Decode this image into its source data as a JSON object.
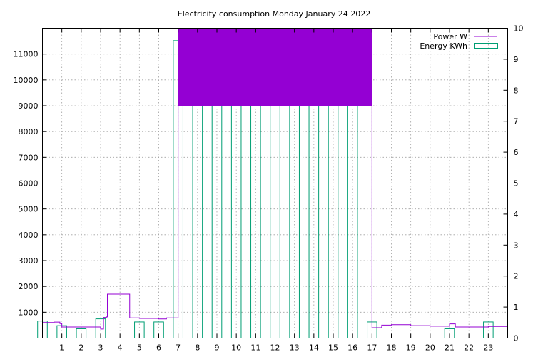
{
  "chart_data": {
    "type": "line",
    "title": "Electricity consumption Monday January 24 2022",
    "xlabel": "",
    "ylabel": "",
    "xlim": [
      0,
      24
    ],
    "ylim": [
      0,
      12000
    ],
    "y2lim": [
      0,
      10
    ],
    "grid": true,
    "legend_position": "top-right",
    "x_ticks": [
      "1",
      "2",
      "3",
      "4",
      "5",
      "6",
      "7",
      "8",
      "9",
      "10",
      "11",
      "12",
      "13",
      "14",
      "15",
      "16",
      "17",
      "18",
      "19",
      "20",
      "21",
      "22",
      "23"
    ],
    "y_ticks": [
      "1000",
      "2000",
      "3000",
      "4000",
      "5000",
      "6000",
      "7000",
      "8000",
      "9000",
      "10000",
      "11000"
    ],
    "y2_ticks": [
      "0",
      "1",
      "2",
      "3",
      "4",
      "5",
      "6",
      "7",
      "8",
      "9",
      "10"
    ],
    "power_color": "#9400d3",
    "energy_color": "#009e73",
    "power_fill_color": "#9400d3",
    "power_saturated_fill": {
      "x_start": 7.0,
      "x_end": 17.0,
      "y_low": 9000,
      "y_high": 12000
    },
    "series": [
      {
        "name": "Power W",
        "axis": "left",
        "style": "steps",
        "x": [
          0,
          0.6,
          0.9,
          1.0,
          2.0,
          3.0,
          3.15,
          3.3,
          3.35,
          4.5,
          5.0,
          6.0,
          6.4,
          7.0,
          7.0,
          17.0,
          17.0,
          17.5,
          18.0,
          19.0,
          20.0,
          21.0,
          21.3,
          22.0,
          23.0,
          24.0
        ],
        "y": [
          600,
          620,
          560,
          430,
          430,
          350,
          800,
          820,
          1700,
          780,
          760,
          740,
          780,
          800,
          9000,
          9000,
          400,
          500,
          520,
          480,
          460,
          550,
          430,
          430,
          450,
          500
        ]
      },
      {
        "name": "Energy KWh",
        "axis": "right",
        "style": "boxes",
        "hours": [
          0,
          1,
          2,
          3,
          4,
          5,
          6,
          7,
          8,
          9,
          10,
          11,
          12,
          13,
          14,
          15,
          16,
          17,
          18,
          19,
          20,
          21,
          22,
          23
        ],
        "values": [
          0.55,
          0.4,
          0.3,
          0.62,
          0.0,
          0.52,
          0.52,
          9.6,
          9.8,
          9.5,
          9.4,
          9.5,
          9.3,
          8.9,
          9.4,
          9.3,
          9.3,
          0.52,
          0.0,
          0.0,
          0.0,
          0.3,
          0.0,
          0.52
        ]
      }
    ]
  }
}
